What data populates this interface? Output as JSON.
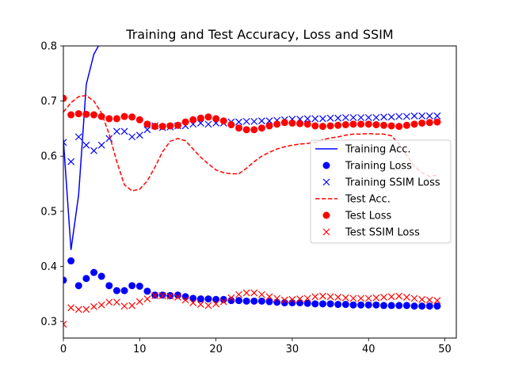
{
  "chart_data": {
    "type": "line",
    "title": "Training and Test Accuracy, Loss and SSIM",
    "xlabel": "",
    "ylabel": "",
    "xlim": [
      0,
      51.5
    ],
    "ylim": [
      0.27,
      0.8
    ],
    "x_ticks": [
      0,
      10,
      20,
      30,
      40,
      50
    ],
    "y_ticks": [
      0.3,
      0.4,
      0.5,
      0.6,
      0.7,
      0.8
    ],
    "x_tick_labels": [
      "0",
      "10",
      "20",
      "30",
      "40",
      "50"
    ],
    "y_tick_labels": [
      "0.3",
      "0.4",
      "0.5",
      "0.6",
      "0.7",
      "0.8"
    ],
    "grid": false,
    "legend_position": "center-right",
    "series": [
      {
        "name": "Training Acc.",
        "style": "line-solid",
        "color": "#0000ff",
        "x": [
          0,
          1,
          2,
          3,
          4,
          5,
          6
        ],
        "values": [
          0.63,
          0.43,
          0.53,
          0.73,
          0.785,
          0.81,
          0.82
        ]
      },
      {
        "name": "Training Loss",
        "style": "marker-circle",
        "color": "#0000ff",
        "x": [
          0,
          1,
          2,
          3,
          4,
          5,
          6,
          7,
          8,
          9,
          10,
          11,
          12,
          13,
          14,
          15,
          16,
          17,
          18,
          19,
          20,
          21,
          22,
          23,
          24,
          25,
          26,
          27,
          28,
          29,
          30,
          31,
          32,
          33,
          34,
          35,
          36,
          37,
          38,
          39,
          40,
          41,
          42,
          43,
          44,
          45,
          46,
          47,
          48,
          49
        ],
        "values": [
          0.375,
          0.41,
          0.365,
          0.378,
          0.389,
          0.382,
          0.365,
          0.356,
          0.356,
          0.365,
          0.364,
          0.355,
          0.348,
          0.348,
          0.347,
          0.348,
          0.345,
          0.342,
          0.341,
          0.341,
          0.34,
          0.34,
          0.338,
          0.338,
          0.337,
          0.337,
          0.337,
          0.336,
          0.335,
          0.334,
          0.334,
          0.334,
          0.333,
          0.332,
          0.332,
          0.332,
          0.331,
          0.331,
          0.33,
          0.33,
          0.33,
          0.33,
          0.329,
          0.329,
          0.329,
          0.329,
          0.328,
          0.328,
          0.328,
          0.328
        ]
      },
      {
        "name": "Training SSIM Loss",
        "style": "marker-x",
        "color": "#0000ff",
        "x": [
          0,
          1,
          2,
          3,
          4,
          5,
          6,
          7,
          8,
          9,
          10,
          11,
          12,
          13,
          14,
          15,
          16,
          17,
          18,
          19,
          20,
          21,
          22,
          23,
          24,
          25,
          26,
          27,
          28,
          29,
          30,
          31,
          32,
          33,
          34,
          35,
          36,
          37,
          38,
          39,
          40,
          41,
          42,
          43,
          44,
          45,
          46,
          47,
          48,
          49
        ],
        "values": [
          0.625,
          0.59,
          0.635,
          0.62,
          0.61,
          0.62,
          0.632,
          0.645,
          0.645,
          0.635,
          0.638,
          0.648,
          0.655,
          0.652,
          0.653,
          0.655,
          0.655,
          0.658,
          0.66,
          0.658,
          0.66,
          0.66,
          0.662,
          0.662,
          0.663,
          0.663,
          0.664,
          0.664,
          0.665,
          0.666,
          0.667,
          0.667,
          0.668,
          0.668,
          0.668,
          0.669,
          0.669,
          0.67,
          0.67,
          0.67,
          0.67,
          0.67,
          0.671,
          0.671,
          0.672,
          0.672,
          0.673,
          0.673,
          0.673,
          0.673
        ]
      },
      {
        "name": "Test Acc.",
        "style": "line-dashed",
        "color": "#ff0000",
        "x": [
          0,
          1,
          2,
          3,
          4,
          5,
          6,
          7,
          8,
          9,
          10,
          11,
          12,
          13,
          14,
          15,
          16,
          17,
          18,
          19,
          20,
          21,
          22,
          23,
          24,
          25,
          26,
          27,
          28,
          29,
          30,
          31,
          32,
          33,
          34,
          35,
          36,
          37,
          38,
          39,
          40,
          41,
          42,
          43,
          44,
          45,
          46,
          47,
          48,
          49
        ],
        "values": [
          0.68,
          0.697,
          0.708,
          0.71,
          0.7,
          0.678,
          0.64,
          0.59,
          0.548,
          0.537,
          0.54,
          0.555,
          0.58,
          0.608,
          0.627,
          0.632,
          0.628,
          0.613,
          0.598,
          0.586,
          0.575,
          0.57,
          0.568,
          0.568,
          0.578,
          0.59,
          0.6,
          0.607,
          0.613,
          0.617,
          0.62,
          0.622,
          0.623,
          0.625,
          0.63,
          0.633,
          0.635,
          0.638,
          0.64,
          0.64,
          0.641,
          0.64,
          0.64,
          0.637,
          0.622,
          0.602,
          0.582,
          0.57,
          0.563,
          0.566
        ]
      },
      {
        "name": "Test Loss",
        "style": "marker-circle",
        "color": "#ff0000",
        "x": [
          0,
          1,
          2,
          3,
          4,
          5,
          6,
          7,
          8,
          9,
          10,
          11,
          12,
          13,
          14,
          15,
          16,
          17,
          18,
          19,
          20,
          21,
          22,
          23,
          24,
          25,
          26,
          27,
          28,
          29,
          30,
          31,
          32,
          33,
          34,
          35,
          36,
          37,
          38,
          39,
          40,
          41,
          42,
          43,
          44,
          45,
          46,
          47,
          48,
          49
        ],
        "values": [
          0.705,
          0.675,
          0.677,
          0.676,
          0.675,
          0.672,
          0.668,
          0.668,
          0.672,
          0.671,
          0.666,
          0.658,
          0.654,
          0.654,
          0.655,
          0.656,
          0.662,
          0.666,
          0.669,
          0.671,
          0.668,
          0.664,
          0.657,
          0.651,
          0.648,
          0.648,
          0.651,
          0.655,
          0.658,
          0.661,
          0.66,
          0.659,
          0.658,
          0.655,
          0.654,
          0.655,
          0.656,
          0.657,
          0.658,
          0.658,
          0.658,
          0.657,
          0.656,
          0.655,
          0.654,
          0.656,
          0.658,
          0.66,
          0.661,
          0.662
        ]
      },
      {
        "name": "Test SSIM Loss",
        "style": "marker-x",
        "color": "#ff0000",
        "x": [
          0,
          1,
          2,
          3,
          4,
          5,
          6,
          7,
          8,
          9,
          10,
          11,
          12,
          13,
          14,
          15,
          16,
          17,
          18,
          19,
          20,
          21,
          22,
          23,
          24,
          25,
          26,
          27,
          28,
          29,
          30,
          31,
          32,
          33,
          34,
          35,
          36,
          37,
          38,
          39,
          40,
          41,
          42,
          43,
          44,
          45,
          46,
          47,
          48,
          49
        ],
        "values": [
          0.295,
          0.325,
          0.322,
          0.322,
          0.327,
          0.33,
          0.335,
          0.335,
          0.328,
          0.329,
          0.336,
          0.341,
          0.347,
          0.347,
          0.346,
          0.344,
          0.339,
          0.334,
          0.331,
          0.329,
          0.332,
          0.336,
          0.343,
          0.349,
          0.352,
          0.352,
          0.349,
          0.345,
          0.342,
          0.339,
          0.34,
          0.341,
          0.342,
          0.345,
          0.346,
          0.345,
          0.344,
          0.343,
          0.342,
          0.342,
          0.342,
          0.343,
          0.344,
          0.345,
          0.346,
          0.344,
          0.342,
          0.34,
          0.339,
          0.338
        ]
      }
    ]
  }
}
